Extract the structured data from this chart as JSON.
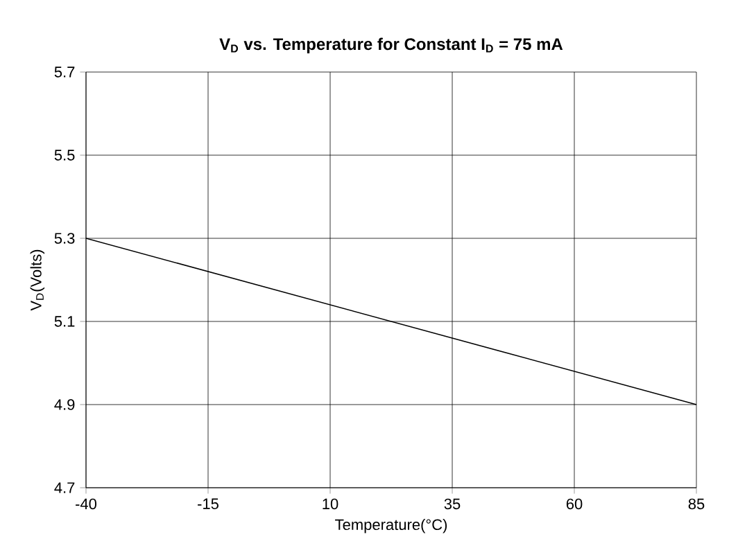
{
  "chart_data": {
    "type": "line",
    "title": "V$_{D}$ vs. Temperature for Constant I$_{D}$ = 75 mA",
    "xlabel": "Temperature(°C)",
    "ylabel": "V$_{D}$(Volts)",
    "x": [
      -40,
      85
    ],
    "series": [
      {
        "color": "#000000",
        "values": [
          5.3,
          4.9
        ]
      }
    ],
    "xlim": [
      -40,
      85
    ],
    "ylim": [
      4.7,
      5.7
    ],
    "xticks": [
      -40,
      -15,
      10,
      35,
      60,
      85
    ],
    "yticks": [
      4.7,
      4.9,
      5.1,
      5.3,
      5.5,
      5.7
    ],
    "grid": true,
    "marker": "none",
    "line_style": "solid"
  }
}
